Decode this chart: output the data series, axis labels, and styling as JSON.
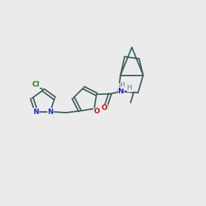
{
  "background_color": "#ebebeb",
  "bond_color": "#3a5a5a",
  "nitrogen_color": "#2222cc",
  "oxygen_color": "#cc1111",
  "chlorine_color": "#1a8a1a",
  "hydrogen_color": "#4a8a8a",
  "figsize": [
    3.0,
    3.0
  ],
  "dpi": 100,
  "xlim": [
    0,
    10
  ],
  "ylim": [
    0,
    10
  ]
}
